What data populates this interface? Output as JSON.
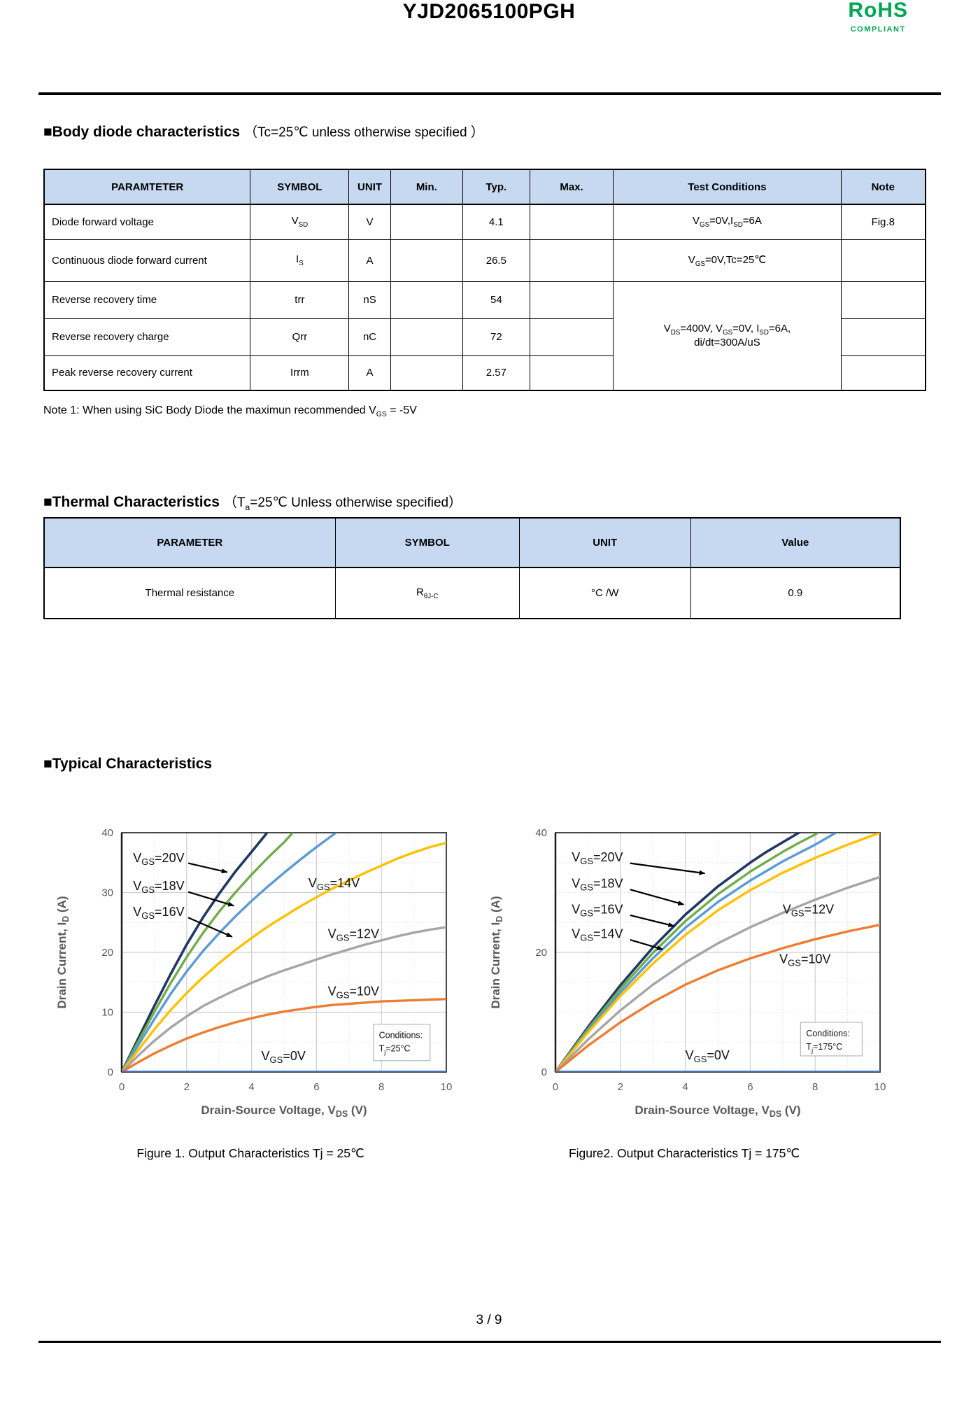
{
  "header": {
    "title": "YJD2065100PGH",
    "rohs_title": "RoHS",
    "rohs_subtitle": "COMPLIANT",
    "rohs_color": "#00A651"
  },
  "sections": {
    "body_diode_heading": "■Body diode characteristics",
    "body_diode_heading_note": "（Tc=25℃ unless otherwise specified ）",
    "thermal_heading": "■Thermal Characteristics",
    "thermal_heading_note": "（T~a~=25℃ Unless otherwise specified）",
    "typical_heading": "■Typical Characteristics"
  },
  "body_diode_table": {
    "headers": [
      "PARAMTETER",
      "SYMBOL",
      "UNIT",
      "Min.",
      "Typ.",
      "Max.",
      "Test Conditions",
      "Note"
    ],
    "rows": [
      {
        "parameter": "Diode forward voltage",
        "symbol": "V~SD~",
        "unit": "V",
        "min": "",
        "typ": "4.1",
        "max": "",
        "cond": "V~GS~=0V,I~SD~=6A",
        "note": "Fig.8"
      },
      {
        "parameter": "Continuous diode forward current",
        "symbol": "I~S~",
        "unit": "A",
        "min": "",
        "typ": "26.5",
        "max": "",
        "cond": "V~GS~=0V,Tc=25℃",
        "note": ""
      },
      {
        "parameter": "Reverse recovery time",
        "symbol": "trr",
        "unit": "nS",
        "min": "",
        "typ": "54",
        "max": "",
        "note": ""
      },
      {
        "parameter": "Reverse recovery charge",
        "symbol": "Qrr",
        "unit": "nC",
        "min": "",
        "typ": "72",
        "max": "",
        "note": ""
      },
      {
        "parameter": "Peak reverse recovery current",
        "symbol": "Irrm",
        "unit": "A",
        "min": "",
        "typ": "2.57",
        "max": "",
        "note": ""
      }
    ],
    "merged_condition": "V~DS~=400V, V~GS~=0V, I~SD~=6A,\ndi/dt=300A/uS"
  },
  "note1": "Note 1: When using SiC Body Diode the maximun recommended V~GS~ = -5V",
  "thermal_table": {
    "headers": [
      "PARAMETER",
      "SYMBOL",
      "UNIT",
      "Value"
    ],
    "rows": [
      {
        "parameter": "Thermal resistance",
        "symbol": "R~θJ-C~",
        "unit": "°C /W",
        "value": "0.9"
      }
    ]
  },
  "footer": {
    "page": "3 / 9"
  },
  "chart_data": [
    {
      "type": "line",
      "caption": "Figure 1. Output Characteristics Tj = 25℃",
      "xlabel": "Drain-Source Voltage, V~DS~ (V)",
      "ylabel": "Drain Current, I~D~ (A)",
      "xlim": [
        0,
        10
      ],
      "ylim": [
        0,
        40
      ],
      "xticks": [
        0,
        2,
        4,
        6,
        8,
        10
      ],
      "yticks": [
        0,
        10,
        20,
        30,
        40
      ],
      "grid_major_x": [
        2,
        4,
        6,
        8
      ],
      "grid_minor_x": [
        1,
        3,
        5,
        7,
        9
      ],
      "grid_major_y": [
        10,
        20,
        30
      ],
      "grid_minor_y": [
        5,
        15,
        25,
        35
      ],
      "grid_on": true,
      "legend_position": "in-plot labels",
      "conditions": [
        "Conditions:",
        "T~j~=25°C"
      ],
      "conditions_box": {
        "x": 7.75,
        "y_top": 8.0,
        "w": 1.75,
        "h": 6.1
      },
      "series": [
        {
          "name": "V~GS~=20V",
          "color": "#1F3864",
          "width": 3.6,
          "points": [
            [
              0,
              0
            ],
            [
              0.5,
              5.5
            ],
            [
              1,
              11
            ],
            [
              1.5,
              16.3
            ],
            [
              2,
              21.3
            ],
            [
              2.5,
              25.8
            ],
            [
              3,
              29.8
            ],
            [
              3.5,
              33.5
            ],
            [
              4,
              36.8
            ],
            [
              4.6,
              40.8
            ]
          ]
        },
        {
          "name": "V~GS~=18V",
          "color": "#70AD47",
          "width": 3.4,
          "points": [
            [
              0,
              0
            ],
            [
              0.5,
              5
            ],
            [
              1,
              10
            ],
            [
              1.5,
              14.8
            ],
            [
              2,
              19.2
            ],
            [
              2.5,
              23.2
            ],
            [
              3,
              26.8
            ],
            [
              3.5,
              30
            ],
            [
              4,
              33
            ],
            [
              4.5,
              35.8
            ],
            [
              5,
              38.4
            ],
            [
              5.4,
              40.8
            ]
          ]
        },
        {
          "name": "V~GS~=16V",
          "color": "#5B9BD5",
          "width": 3.4,
          "points": [
            [
              0,
              0
            ],
            [
              0.5,
              4.4
            ],
            [
              1,
              8.8
            ],
            [
              1.5,
              13
            ],
            [
              2,
              16.8
            ],
            [
              2.5,
              20.2
            ],
            [
              3,
              23.2
            ],
            [
              3.5,
              26
            ],
            [
              4,
              28.6
            ],
            [
              4.5,
              31
            ],
            [
              5,
              33.3
            ],
            [
              5.5,
              35.5
            ],
            [
              6,
              37.6
            ],
            [
              6.5,
              39.6
            ],
            [
              6.8,
              40.8
            ]
          ]
        },
        {
          "name": "V~GS~=14V",
          "color": "#FFC000",
          "width": 3.4,
          "points": [
            [
              0,
              0
            ],
            [
              0.5,
              3.6
            ],
            [
              1,
              7.1
            ],
            [
              1.5,
              10.3
            ],
            [
              2,
              13.2
            ],
            [
              2.5,
              15.8
            ],
            [
              3,
              18.2
            ],
            [
              3.5,
              20.4
            ],
            [
              4,
              22.4
            ],
            [
              4.5,
              24.3
            ],
            [
              5,
              26
            ],
            [
              5.5,
              27.7
            ],
            [
              6,
              29.2
            ],
            [
              6.5,
              30.7
            ],
            [
              7,
              32
            ],
            [
              7.5,
              33.3
            ],
            [
              8,
              34.5
            ],
            [
              8.5,
              35.7
            ],
            [
              9,
              36.7
            ],
            [
              9.5,
              37.6
            ],
            [
              10,
              38.3
            ]
          ]
        },
        {
          "name": "V~GS~=12V",
          "color": "#A5A5A5",
          "width": 3.4,
          "points": [
            [
              0,
              0
            ],
            [
              0.5,
              2.7
            ],
            [
              1,
              5.2
            ],
            [
              1.5,
              7.4
            ],
            [
              2,
              9.3
            ],
            [
              2.5,
              11
            ],
            [
              3,
              12.4
            ],
            [
              3.5,
              13.7
            ],
            [
              4,
              14.9
            ],
            [
              4.5,
              16
            ],
            [
              5,
              17
            ],
            [
              5.5,
              17.9
            ],
            [
              6,
              18.8
            ],
            [
              6.5,
              19.7
            ],
            [
              7,
              20.5
            ],
            [
              7.5,
              21.3
            ],
            [
              8,
              22
            ],
            [
              8.5,
              22.7
            ],
            [
              9,
              23.3
            ],
            [
              9.5,
              23.8
            ],
            [
              10,
              24.2
            ]
          ]
        },
        {
          "name": "V~GS~=10V",
          "color": "#ED7D31",
          "width": 3.4,
          "points": [
            [
              0,
              0
            ],
            [
              0.5,
              1.6
            ],
            [
              1,
              3.1
            ],
            [
              1.5,
              4.4
            ],
            [
              2,
              5.6
            ],
            [
              2.5,
              6.6
            ],
            [
              3,
              7.5
            ],
            [
              3.5,
              8.3
            ],
            [
              4,
              9
            ],
            [
              4.5,
              9.6
            ],
            [
              5,
              10.1
            ],
            [
              5.5,
              10.5
            ],
            [
              6,
              10.9
            ],
            [
              6.5,
              11.2
            ],
            [
              7,
              11.4
            ],
            [
              7.5,
              11.6
            ],
            [
              8,
              11.8
            ],
            [
              8.5,
              11.9
            ],
            [
              9,
              12
            ],
            [
              9.5,
              12.1
            ],
            [
              10,
              12.2
            ]
          ]
        },
        {
          "name": "V~GS~=0V",
          "color": "#4472C4",
          "width": 4,
          "points": [
            [
              0,
              0
            ],
            [
              10,
              0
            ]
          ]
        }
      ],
      "labels": [
        {
          "text": "V~GS~=20V",
          "x": 0.35,
          "y": 35.1,
          "arrow": [
            2.05,
            34.9,
            3.25,
            33.4
          ]
        },
        {
          "text": "V~GS~=18V",
          "x": 0.35,
          "y": 30.4,
          "arrow": [
            2.05,
            30.1,
            3.45,
            27.8
          ]
        },
        {
          "text": "V~GS~=16V",
          "x": 0.35,
          "y": 26.1,
          "arrow": [
            2.05,
            25.8,
            3.4,
            22.6
          ]
        },
        {
          "text": "V~GS~=14V",
          "x": 5.75,
          "y": 30.9
        },
        {
          "text": "V~GS~=12V",
          "x": 6.35,
          "y": 22.4
        },
        {
          "text": "V~GS~=10V",
          "x": 6.35,
          "y": 12.8
        },
        {
          "text": "V~GS~=0V",
          "x": 4.3,
          "y": 2.0
        }
      ]
    },
    {
      "type": "line",
      "caption": "Figure2. Output Characteristics Tj = 175℃",
      "xlabel": "Drain-Source Voltage, V~DS~ (V)",
      "ylabel": "Drain Current, I~D~ (A)",
      "xlim": [
        0,
        10
      ],
      "ylim": [
        0,
        40
      ],
      "xticks": [
        0,
        2,
        4,
        6,
        8,
        10
      ],
      "yticks": [
        0,
        20,
        40
      ],
      "grid_major_x": [
        2,
        4,
        6,
        8
      ],
      "grid_minor_x": [
        1,
        3,
        5,
        7,
        9
      ],
      "grid_major_y": [
        20
      ],
      "grid_minor_y": [
        5,
        10,
        15,
        25,
        30,
        35
      ],
      "grid_on": true,
      "legend_position": "in-plot labels",
      "conditions": [
        "Conditions:",
        "T~j~=175°C"
      ],
      "conditions_box": {
        "x": 7.55,
        "y_top": 8.3,
        "w": 1.9,
        "h": 5.6
      },
      "series": [
        {
          "name": "V~GS~=20V",
          "color": "#1F3864",
          "width": 3.6,
          "points": [
            [
              0,
              0
            ],
            [
              1,
              7.5
            ],
            [
              2,
              14.5
            ],
            [
              3,
              20.8
            ],
            [
              4,
              26.3
            ],
            [
              5,
              31
            ],
            [
              6,
              35
            ],
            [
              6.5,
              36.8
            ],
            [
              7,
              38.4
            ],
            [
              7.5,
              40
            ],
            [
              7.8,
              40.8
            ]
          ]
        },
        {
          "name": "V~GS~=18V",
          "color": "#70AD47",
          "width": 3.4,
          "points": [
            [
              0,
              0
            ],
            [
              1,
              7.2
            ],
            [
              2,
              13.9
            ],
            [
              3,
              19.9
            ],
            [
              4,
              25.2
            ],
            [
              5,
              29.7
            ],
            [
              6,
              33.5
            ],
            [
              7,
              36.8
            ],
            [
              7.5,
              38.3
            ],
            [
              8,
              39.7
            ],
            [
              8.3,
              40.8
            ]
          ]
        },
        {
          "name": "V~GS~=16V",
          "color": "#5B9BD5",
          "width": 3.4,
          "points": [
            [
              0,
              0
            ],
            [
              1,
              6.9
            ],
            [
              2,
              13.3
            ],
            [
              3,
              19
            ],
            [
              4,
              24.1
            ],
            [
              5,
              28.4
            ],
            [
              6,
              32
            ],
            [
              7,
              35.2
            ],
            [
              8,
              38
            ],
            [
              8.8,
              40.5
            ]
          ]
        },
        {
          "name": "V~GS~=14V",
          "color": "#FFC000",
          "width": 3.4,
          "points": [
            [
              0,
              0
            ],
            [
              1,
              6.6
            ],
            [
              2,
              12.7
            ],
            [
              3,
              18.1
            ],
            [
              4,
              22.9
            ],
            [
              5,
              27
            ],
            [
              6,
              30.4
            ],
            [
              7,
              33.3
            ],
            [
              8,
              35.8
            ],
            [
              9,
              38
            ],
            [
              10,
              40
            ]
          ]
        },
        {
          "name": "V~GS~=12V",
          "color": "#A5A5A5",
          "width": 3.4,
          "points": [
            [
              0,
              0
            ],
            [
              1,
              5.4
            ],
            [
              2,
              10.3
            ],
            [
              3,
              14.6
            ],
            [
              4,
              18.3
            ],
            [
              5,
              21.5
            ],
            [
              6,
              24.2
            ],
            [
              7,
              26.6
            ],
            [
              8,
              28.8
            ],
            [
              9,
              30.8
            ],
            [
              10,
              32.6
            ]
          ]
        },
        {
          "name": "V~GS~=10V",
          "color": "#ED7D31",
          "width": 3.4,
          "points": [
            [
              0,
              0
            ],
            [
              1,
              4.4
            ],
            [
              2,
              8.3
            ],
            [
              3,
              11.7
            ],
            [
              4,
              14.6
            ],
            [
              5,
              17
            ],
            [
              6,
              19
            ],
            [
              7,
              20.7
            ],
            [
              8,
              22.2
            ],
            [
              9,
              23.5
            ],
            [
              10,
              24.6
            ]
          ]
        },
        {
          "name": "V~GS~=0V",
          "color": "#4472C4",
          "width": 4,
          "points": [
            [
              0,
              0
            ],
            [
              10,
              0
            ]
          ]
        }
      ],
      "labels": [
        {
          "text": "V~GS~=20V",
          "x": 0.5,
          "y": 35.2,
          "arrow": [
            2.3,
            34.9,
            4.6,
            33.2
          ]
        },
        {
          "text": "V~GS~=18V",
          "x": 0.5,
          "y": 30.8,
          "arrow": [
            2.3,
            30.5,
            3.95,
            28.0
          ]
        },
        {
          "text": "V~GS~=16V",
          "x": 0.5,
          "y": 26.5,
          "arrow": [
            2.3,
            26.2,
            3.65,
            24.4
          ]
        },
        {
          "text": "V~GS~=14V",
          "x": 0.5,
          "y": 22.4,
          "arrow": [
            2.3,
            22.1,
            3.3,
            20.5
          ]
        },
        {
          "text": "V~GS~=12V",
          "x": 7.0,
          "y": 26.5
        },
        {
          "text": "V~GS~=10V",
          "x": 6.9,
          "y": 18.2
        },
        {
          "text": "V~GS~=0V",
          "x": 4.0,
          "y": 2.1
        }
      ]
    }
  ]
}
